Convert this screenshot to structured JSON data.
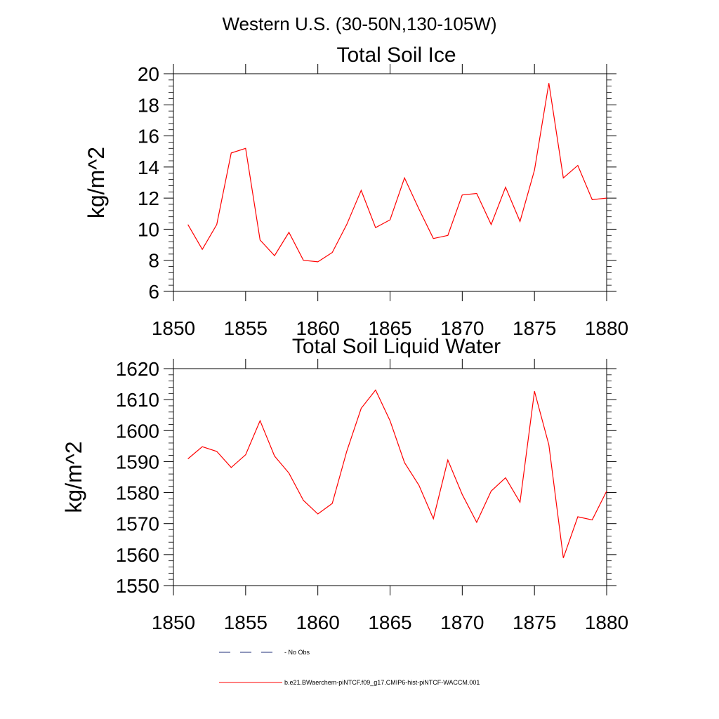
{
  "figure": {
    "title": "Western U.S. (30-50N,130-105W)"
  },
  "chart_data": [
    {
      "type": "line",
      "title": "Total Soil Ice",
      "xlabel": "",
      "ylabel": "kg/m^2",
      "xlim": [
        1850,
        1880
      ],
      "ylim": [
        6,
        20
      ],
      "x_ticks": [
        1850,
        1855,
        1860,
        1865,
        1870,
        1875,
        1880
      ],
      "y_ticks": [
        6,
        8,
        10,
        12,
        14,
        16,
        18,
        20
      ],
      "grid": false,
      "series": [
        {
          "name": "b.e21.BWaerchem-piNTCF.f09_g17.CMIP6-hist-piNTCF-WACCM.001",
          "color": "#ff0000",
          "x": [
            1851,
            1852,
            1853,
            1854,
            1855,
            1856,
            1857,
            1858,
            1859,
            1860,
            1861,
            1862,
            1863,
            1864,
            1865,
            1866,
            1867,
            1868,
            1869,
            1870,
            1871,
            1872,
            1873,
            1874,
            1875,
            1876,
            1877,
            1878,
            1879,
            1880
          ],
          "values": [
            10.3,
            8.7,
            10.3,
            14.9,
            15.2,
            9.3,
            8.3,
            9.8,
            8.0,
            7.9,
            8.5,
            10.3,
            12.5,
            10.1,
            10.6,
            13.3,
            11.3,
            9.4,
            9.6,
            12.2,
            12.3,
            10.3,
            12.7,
            10.5,
            13.8,
            19.4,
            13.3,
            14.1,
            11.9,
            12.0
          ]
        }
      ]
    },
    {
      "type": "line",
      "title": "Total Soil Liquid Water",
      "xlabel": "",
      "ylabel": "kg/m^2",
      "xlim": [
        1850,
        1880
      ],
      "ylim": [
        1550,
        1620
      ],
      "x_ticks": [
        1850,
        1855,
        1860,
        1865,
        1870,
        1875,
        1880
      ],
      "y_ticks": [
        1550,
        1560,
        1570,
        1580,
        1590,
        1600,
        1610,
        1620
      ],
      "grid": false,
      "series": [
        {
          "name": "b.e21.BWaerchem-piNTCF.f09_g17.CMIP6-hist-piNTCF-WACCM.001",
          "color": "#ff0000",
          "x": [
            1851,
            1852,
            1853,
            1854,
            1855,
            1856,
            1857,
            1858,
            1859,
            1860,
            1861,
            1862,
            1863,
            1864,
            1865,
            1866,
            1867,
            1868,
            1869,
            1870,
            1871,
            1872,
            1873,
            1874,
            1875,
            1876,
            1877,
            1878,
            1879,
            1880
          ],
          "values": [
            1590.9,
            1594.8,
            1593.3,
            1588.1,
            1592.2,
            1603.2,
            1591.8,
            1586.3,
            1577.5,
            1573.1,
            1576.5,
            1593.3,
            1607.2,
            1613.1,
            1603.2,
            1589.7,
            1582.4,
            1571.6,
            1590.5,
            1579.4,
            1570.4,
            1580.5,
            1584.8,
            1576.9,
            1612.7,
            1595.4,
            1558.9,
            1572.2,
            1571.2,
            1580.5
          ]
        }
      ]
    }
  ],
  "legend": {
    "placement": "bottom-center",
    "entries": [
      {
        "label": "No Obs",
        "color": "#1f2f7a",
        "style": "dashed"
      },
      {
        "label": "b.e21.BWaerchem-piNTCF.f09_g17.CMIP6-hist-piNTCF-WACCM.001",
        "color": "#ff0000",
        "style": "solid"
      }
    ]
  }
}
